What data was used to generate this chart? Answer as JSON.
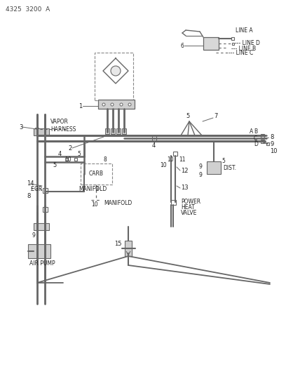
{
  "title": "4325  3200  A",
  "bg_color": "#ffffff",
  "line_color": "#666666",
  "text_color": "#222222",
  "labels": {
    "vapor_harness": "VAPOR\nHARNESS",
    "carb": "CARB",
    "manifold1": "MANIFOLD",
    "manifold2": "MANIFOLD",
    "egr": "EGR",
    "air_pump": "AIR PUMP",
    "dist": "DIST.",
    "power_heat_valve": "POWER\nHEAT\nVALVE",
    "line_a": "LINE A",
    "line_b": "LINE B",
    "line_c": "LINE C",
    "line_d": "LINE D"
  }
}
